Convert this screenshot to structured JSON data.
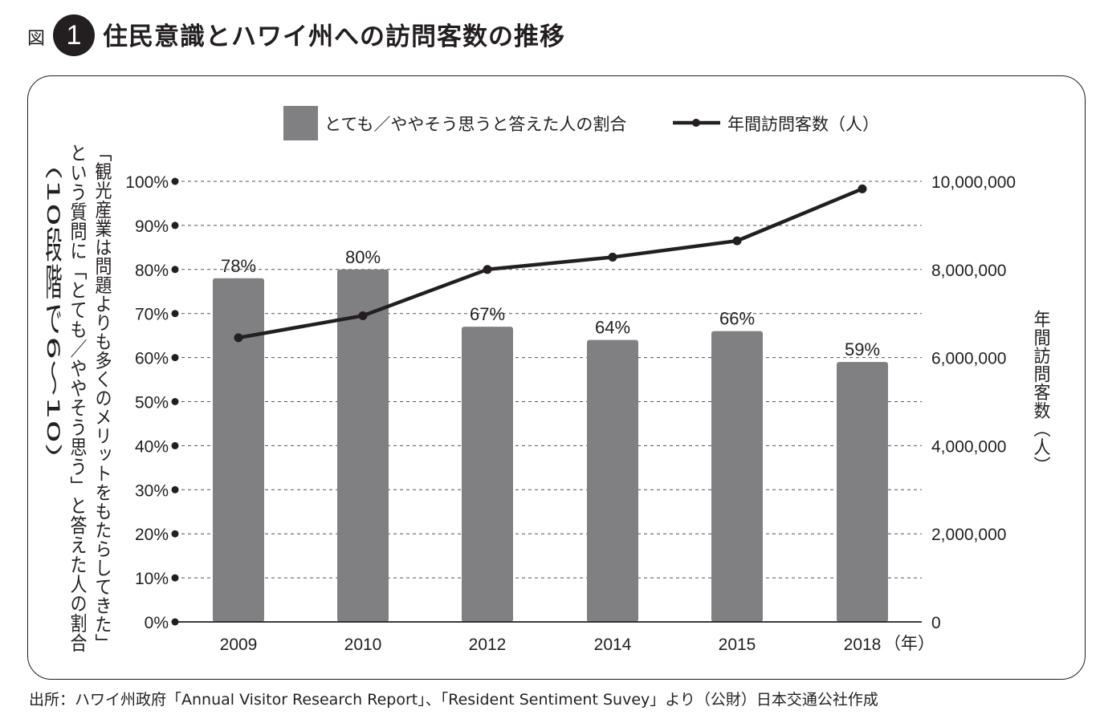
{
  "header": {
    "prefix": "図",
    "number": "1",
    "title": "住民意識とハワイ州への訪問客数の推移"
  },
  "footer": {
    "source": "出所：ハワイ州政府「Annual Visitor Research Report」、「Resident Sentiment Suvey」より（公財）日本交通公社作成"
  },
  "chart_data": {
    "type": "bar",
    "categories": [
      "2009",
      "2010",
      "2012",
      "2014",
      "2015",
      "2018"
    ],
    "x_unit": "（年）",
    "series": [
      {
        "name": "とても／ややそう思うと答えた人の割合",
        "type": "bar",
        "axis": "left",
        "values": [
          78,
          80,
          67,
          64,
          66,
          59
        ],
        "labels": [
          "78%",
          "80%",
          "67%",
          "64%",
          "66%",
          "59%"
        ],
        "color": "#808082"
      },
      {
        "name": "年間訪問客数（人）",
        "type": "line",
        "axis": "right",
        "values": [
          6450000,
          6950000,
          8000000,
          8280000,
          8650000,
          9830000
        ],
        "color": "#231f20"
      }
    ],
    "y_left": {
      "label_lines": [
        "「観光産業は問題よりも多くのメリットをもたらしてきた」",
        "という質問に「とても／ややそう思う」と答えた人の割合",
        "（10段階で6～10）"
      ],
      "min": 0,
      "max": 100,
      "step": 10,
      "tick_labels": [
        "0%",
        "10%",
        "20%",
        "30%",
        "40%",
        "50%",
        "60%",
        "70%",
        "80%",
        "90%",
        "100%"
      ]
    },
    "y_right": {
      "label": "年間訪問客数（人）",
      "min": 0,
      "max": 10000000,
      "step": 2000000,
      "tick_labels": [
        "0",
        "2,000,000",
        "4,000,000",
        "6,000,000",
        "8,000,000",
        "10,000,000"
      ]
    },
    "grid": true,
    "legend_position": "top-center"
  }
}
